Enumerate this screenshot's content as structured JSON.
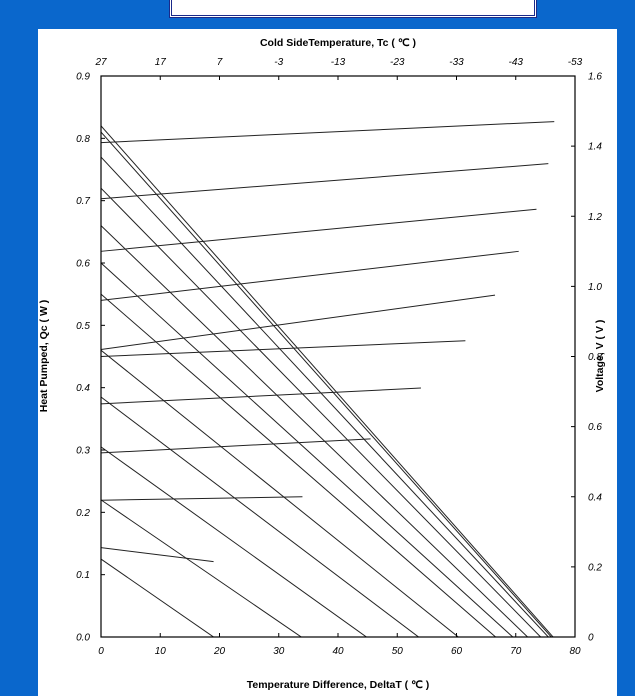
{
  "chart_data": {
    "type": "line",
    "title": "Cold SideTemperature, Tc ( ℃ )",
    "xlabel": "Temperature Difference, DeltaT ( ℃ )",
    "ylabel": "Heat Pumped, Qc ( W )",
    "y2label": "Voltage, V ( V )",
    "xlim": [
      0,
      80
    ],
    "ylim": [
      0,
      0.9
    ],
    "y2lim": [
      0,
      1.6
    ],
    "x_ticks": [
      "0",
      "10",
      "20",
      "30",
      "40",
      "50",
      "60",
      "70",
      "80"
    ],
    "y_ticks": [
      "0.0",
      "0.1",
      "0.2",
      "0.3",
      "0.4",
      "0.5",
      "0.6",
      "0.7",
      "0.8",
      "0.9"
    ],
    "y2_ticks": [
      "0",
      "0.2",
      "0.4",
      "0.6",
      "0.8",
      "1.0",
      "1.2",
      "1.4",
      "1.6"
    ],
    "top_ticks": [
      "27",
      "17",
      "7",
      "-3",
      "-13",
      "-23",
      "-33",
      "-43",
      "-53"
    ],
    "grid": false,
    "qc_series": [
      {
        "x": [
          0,
          76.3
        ],
        "y": [
          0.82,
          0
        ]
      },
      {
        "x": [
          0,
          76.0
        ],
        "y": [
          0.81,
          0
        ]
      },
      {
        "x": [
          0,
          75.5
        ],
        "y": [
          0.77,
          0
        ]
      },
      {
        "x": [
          0,
          74.2
        ],
        "y": [
          0.72,
          0
        ]
      },
      {
        "x": [
          0,
          72.0
        ],
        "y": [
          0.66,
          0
        ]
      },
      {
        "x": [
          0,
          69.5
        ],
        "y": [
          0.6,
          0
        ]
      },
      {
        "x": [
          0,
          66.6
        ],
        "y": [
          0.55,
          0
        ]
      },
      {
        "x": [
          0,
          60.3
        ],
        "y": [
          0.46,
          0
        ]
      },
      {
        "x": [
          0,
          53.6
        ],
        "y": [
          0.385,
          0
        ]
      },
      {
        "x": [
          0,
          44.8
        ],
        "y": [
          0.305,
          0
        ]
      },
      {
        "x": [
          0,
          33.8
        ],
        "y": [
          0.22,
          0
        ]
      },
      {
        "x": [
          0,
          19.0
        ],
        "y": [
          0.125,
          0
        ]
      }
    ],
    "voltage_series": [
      {
        "x": [
          0,
          76.5
        ],
        "y": [
          1.41,
          1.47
        ]
      },
      {
        "x": [
          0,
          75.5
        ],
        "y": [
          1.25,
          1.35
        ]
      },
      {
        "x": [
          0,
          73.5
        ],
        "y": [
          1.1,
          1.22
        ]
      },
      {
        "x": [
          0,
          70.5
        ],
        "y": [
          0.96,
          1.1
        ]
      },
      {
        "x": [
          0,
          66.5
        ],
        "y": [
          0.82,
          0.975
        ]
      },
      {
        "x": [
          0,
          61.5
        ],
        "y": [
          0.8,
          0.845
        ]
      },
      {
        "x": [
          0,
          54.0
        ],
        "y": [
          0.665,
          0.71
        ]
      },
      {
        "x": [
          0,
          45.5
        ],
        "y": [
          0.525,
          0.565
        ]
      },
      {
        "x": [
          0,
          34.0
        ],
        "y": [
          0.39,
          0.4
        ]
      },
      {
        "x": [
          0,
          19.0
        ],
        "y": [
          0.255,
          0.215
        ]
      },
      {
        "x": [
          0,
          0
        ],
        "y": [
          0.125,
          0.125
        ]
      }
    ]
  }
}
